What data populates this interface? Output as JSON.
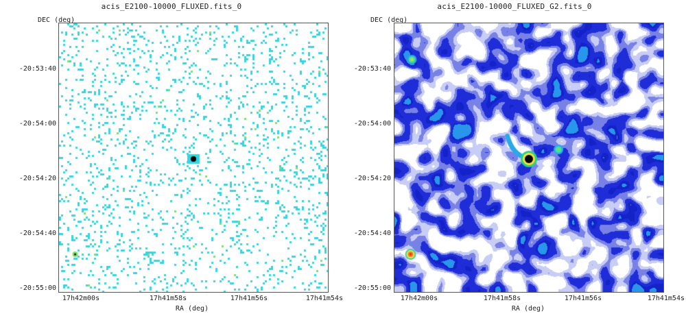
{
  "panels": [
    {
      "title": "acis_E2100-10000_FLUXED.fits_0",
      "ylabel": "DEC (deg)",
      "xlabel": "RA (deg)",
      "yticks": [
        "-20:53:40",
        "-20:54:00",
        "-20:54:20",
        "-20:54:40",
        "-20:55:00"
      ],
      "xticks": [
        "17h42m00s",
        "17h41m58s",
        "17h41m56s",
        "17h41m54s"
      ],
      "style": "sparse-cyan-pixels"
    },
    {
      "title": "acis_E2100-10000_FLUXED_G2.fits_0",
      "ylabel": "DEC (deg)",
      "xlabel": "RA (deg)",
      "yticks": [
        "-20:53:40",
        "-20:54:00",
        "-20:54:20",
        "-20:54:40",
        "-20:55:00"
      ],
      "xticks": [
        "17h42m00s",
        "17h41m58s",
        "17h41m56s",
        "17h41m54s"
      ],
      "style": "smoothed-blue-noise"
    }
  ],
  "colors": {
    "frame": "#555555",
    "sparse_pixel": "#33d6e0",
    "smooth_blue": "#1a2bd6",
    "smooth_light": "#9aa6ee",
    "source_core": "#000000",
    "source_ring": "#f5e33a"
  }
}
